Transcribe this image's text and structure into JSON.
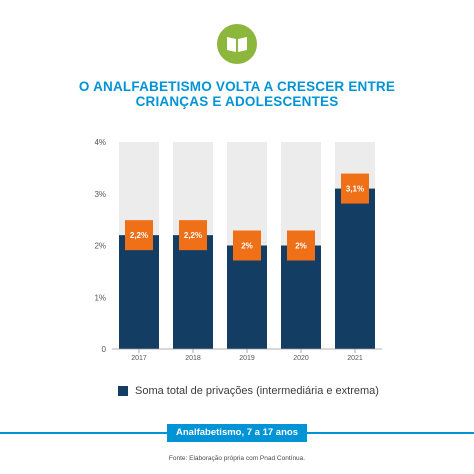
{
  "header": {
    "icon": "book-icon",
    "title_line1": "O ANALFABETISMO VOLTA A CRESCER ENTRE",
    "title_line2": "CRIANÇAS E ADOLESCENTES"
  },
  "chart_data": {
    "type": "bar",
    "categories": [
      "2017",
      "2018",
      "2019",
      "2020",
      "2021"
    ],
    "series": [
      {
        "name": "Soma total de privações (intermediária e extrema)",
        "values": [
          2.2,
          2.2,
          2.0,
          2.0,
          3.1
        ],
        "color": "#143d63"
      }
    ],
    "data_labels": [
      "2,2%",
      "2,2%",
      "2%",
      "2%",
      "3,1%"
    ],
    "y_ticks": [
      "0",
      "1%",
      "2%",
      "3%",
      "4%"
    ],
    "ylim": [
      0,
      4
    ],
    "background_bar_value": 4,
    "background_bar_color": "#ececec",
    "label_box_color": "#f07018",
    "grid": false,
    "legend_position": "bottom-left"
  },
  "footer": {
    "banner_label": "Analfabetismo, 7 a 17 anos",
    "source": "Fonte: Elaboração própria com Pnad Contínua."
  }
}
